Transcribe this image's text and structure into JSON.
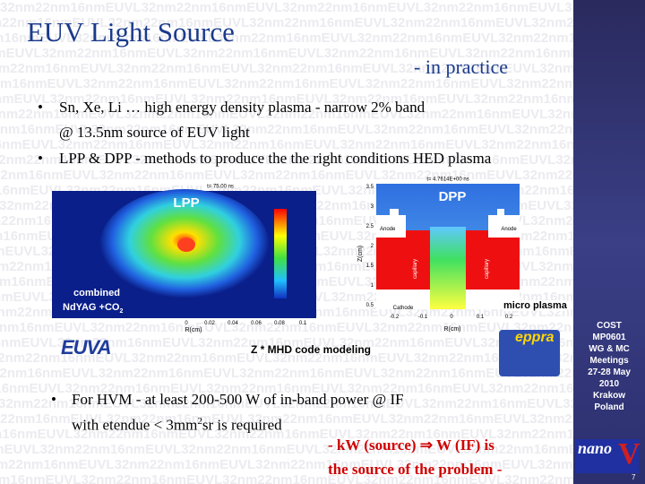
{
  "background_pattern": "32nm22nm16nmEUVL",
  "title": "EUV Light Source",
  "subtitle": "- in practice",
  "bullets": [
    {
      "lines": [
        "Sn, Xe, Li … high energy density plasma -  narrow 2% band",
        "@ 13.5nm source of EUV light"
      ]
    },
    {
      "lines": [
        "LPP & DPP - methods to produce the the right conditions HED plasma"
      ]
    }
  ],
  "lpp": {
    "time": "t= 75.00 ns",
    "label": "LPP",
    "note": [
      "combined",
      "NdYAG +CO",
      "2"
    ],
    "xticks": [
      "0",
      "0.02",
      "0.04",
      "0.06",
      "0.08",
      "0.1"
    ],
    "xlabel": "R(cm)"
  },
  "dpp": {
    "time": "t= 4.7614E+00 ns",
    "label": "DPP",
    "anodes": [
      "Anode",
      "Anode"
    ],
    "cathode": "Cathode",
    "capillary": [
      "capillary",
      "capillary"
    ],
    "yticks": [
      "3.5",
      "3",
      "2.5",
      "2",
      "1.5",
      "1",
      "0.5"
    ],
    "ylabel": "Z(cm)",
    "xticks": [
      "-0.2",
      "-0.1",
      "0",
      "0.1",
      "0.2"
    ],
    "xlabel": "R(cm)"
  },
  "micro_plasma": "micro plasma",
  "caption": "Z * MHD code modeling",
  "logos": {
    "euva": "EUVA",
    "eppra": "eppra"
  },
  "hvm": {
    "line1": "For HVM  - at least 200-500 W of in-band power @ IF",
    "line2": [
      "with etendue < 3mm",
      "2",
      "sr is required"
    ]
  },
  "conclusion": [
    "- kW (source) ⇒ W (IF) is",
    "the source of the problem -"
  ],
  "sidebar": [
    "COST",
    "MP0601",
    "WG & MC",
    "Meetings",
    "27-28 May",
    "2010",
    "Krakow",
    "Poland"
  ],
  "logo": [
    "nano",
    "V"
  ],
  "page_number": "7"
}
